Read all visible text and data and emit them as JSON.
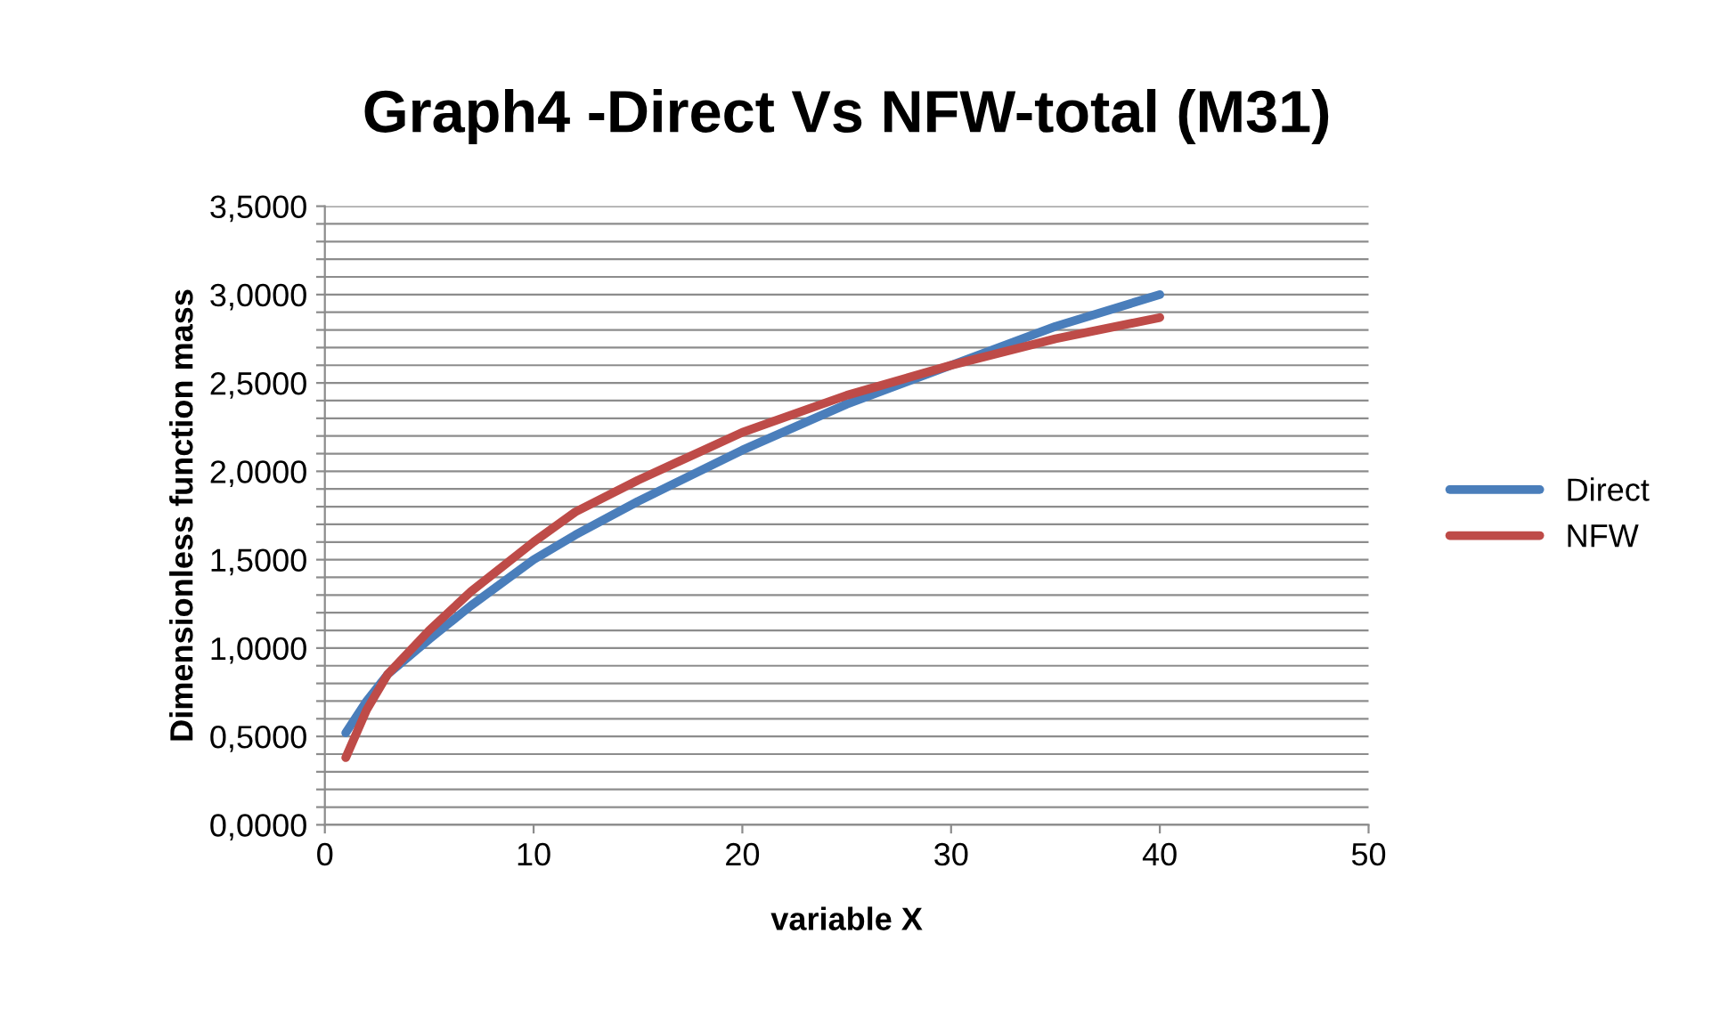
{
  "chart_data": {
    "type": "line",
    "title": "Graph4 -Direct Vs NFW-total (M31)",
    "xlabel": "variable X",
    "ylabel": "Dimensionless function mass",
    "xlim": [
      0,
      50
    ],
    "xticks": [
      0,
      10,
      20,
      30,
      40,
      50
    ],
    "ylim": [
      0,
      3.5
    ],
    "yticks": [
      {
        "value": 0,
        "label": "0,0000"
      },
      {
        "value": 0.1,
        "label": null
      },
      {
        "value": 0.2,
        "label": null
      },
      {
        "value": 0.3,
        "label": null
      },
      {
        "value": 0.4,
        "label": null
      },
      {
        "value": 0.5,
        "label": "0,5000"
      },
      {
        "value": 0.6,
        "label": null
      },
      {
        "value": 0.7,
        "label": null
      },
      {
        "value": 0.8,
        "label": null
      },
      {
        "value": 0.9,
        "label": null
      },
      {
        "value": 1,
        "label": "1,0000"
      },
      {
        "value": 1.1,
        "label": null
      },
      {
        "value": 1.2,
        "label": null
      },
      {
        "value": 1.3,
        "label": null
      },
      {
        "value": 1.4,
        "label": null
      },
      {
        "value": 1.5,
        "label": "1,5000"
      },
      {
        "value": 1.6,
        "label": null
      },
      {
        "value": 1.7,
        "label": null
      },
      {
        "value": 1.8,
        "label": null
      },
      {
        "value": 1.9,
        "label": null
      },
      {
        "value": 2,
        "label": "2,0000"
      },
      {
        "value": 2.1,
        "label": null
      },
      {
        "value": 2.2,
        "label": null
      },
      {
        "value": 2.3,
        "label": null
      },
      {
        "value": 2.4,
        "label": null
      },
      {
        "value": 2.5,
        "label": "2,5000"
      },
      {
        "value": 2.6,
        "label": null
      },
      {
        "value": 2.7,
        "label": null
      },
      {
        "value": 2.8,
        "label": null
      },
      {
        "value": 2.9,
        "label": null
      },
      {
        "value": 3,
        "label": "3,0000"
      },
      {
        "value": 3.1,
        "label": null
      },
      {
        "value": 3.2,
        "label": null
      },
      {
        "value": 3.3,
        "label": null
      },
      {
        "value": 3.4,
        "label": null
      },
      {
        "value": 3.5,
        "label": "3,5000"
      }
    ],
    "grid": "y",
    "legend": "right",
    "marker": "none",
    "line_style": "solid",
    "series": [
      {
        "name": "Direct",
        "color": "#4a7ebb",
        "x": [
          1,
          2,
          3,
          5,
          7,
          10,
          12,
          15,
          20,
          25,
          30,
          35,
          40
        ],
        "values": [
          0.52,
          0.7,
          0.85,
          1.05,
          1.24,
          1.5,
          1.64,
          1.83,
          2.12,
          2.38,
          2.6,
          2.82,
          3.0
        ]
      },
      {
        "name": "NFW",
        "color": "#be4b48",
        "x": [
          1,
          2,
          3,
          5,
          7,
          10,
          12,
          15,
          20,
          25,
          30,
          35,
          40
        ],
        "values": [
          0.38,
          0.65,
          0.85,
          1.1,
          1.32,
          1.6,
          1.77,
          1.95,
          2.22,
          2.43,
          2.6,
          2.75,
          2.87
        ]
      }
    ]
  }
}
